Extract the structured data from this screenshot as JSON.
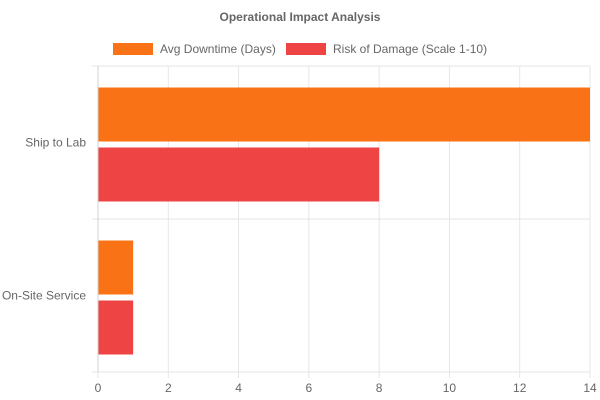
{
  "chart_data": {
    "type": "bar",
    "orientation": "horizontal",
    "title": "Operational Impact Analysis",
    "categories": [
      "Ship to Lab",
      "On-Site Service"
    ],
    "series": [
      {
        "name": "Avg Downtime (Days)",
        "color": "#f97316",
        "values": [
          14,
          1
        ]
      },
      {
        "name": "Risk of Damage (Scale 1-10)",
        "color": "#ef4444",
        "values": [
          8,
          1
        ]
      }
    ],
    "xlim": [
      0,
      14
    ],
    "x_ticks": [
      "0",
      "2",
      "4",
      "6",
      "8",
      "10",
      "12",
      "14"
    ],
    "xlabel": "",
    "ylabel": "",
    "grid": true,
    "legend_position": "top"
  }
}
